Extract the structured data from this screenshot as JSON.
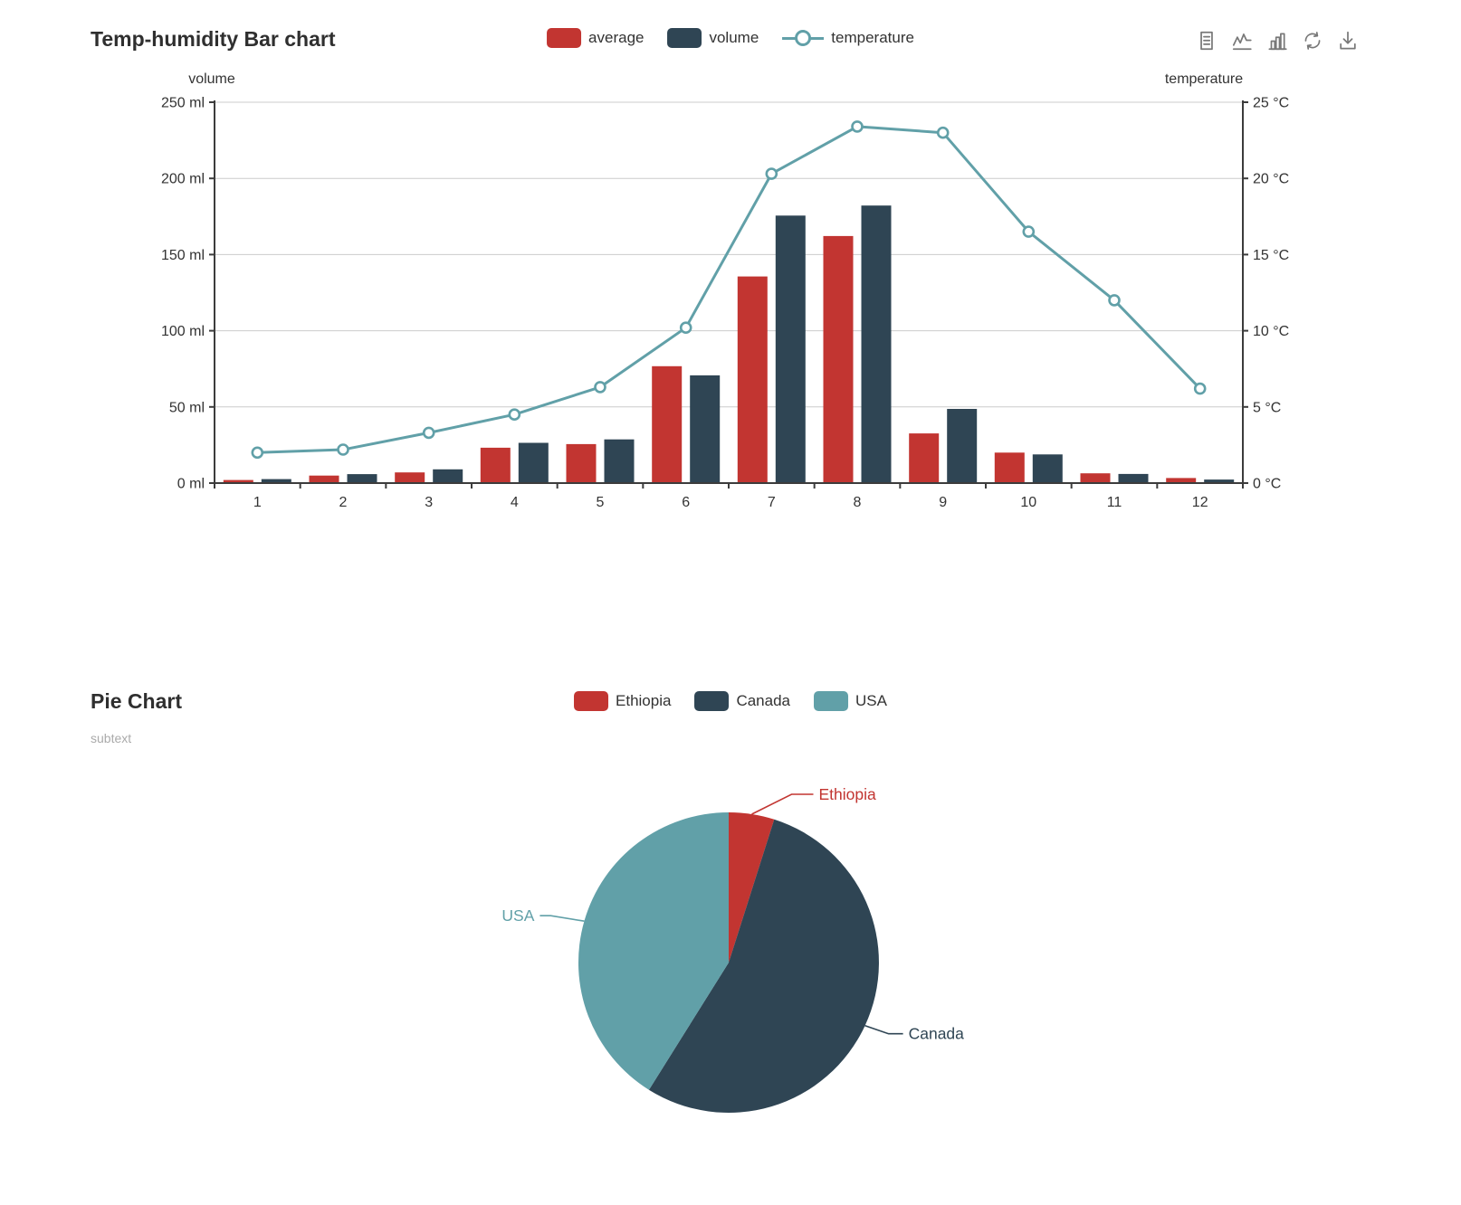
{
  "bar_chart": {
    "title": "Temp-humidity Bar chart",
    "legend": [
      {
        "label": "average",
        "color": "#c23531",
        "icon": "rect"
      },
      {
        "label": "volume",
        "color": "#2f4554",
        "icon": "rect"
      },
      {
        "label": "temperature",
        "color": "#61a0a8",
        "icon": "line-marker"
      }
    ],
    "toolbox": {
      "color": "#787878",
      "icons": [
        "data-view-icon",
        "magictype-line-icon",
        "magictype-bar-icon",
        "restore-icon",
        "save-image-icon"
      ]
    }
  },
  "pie_chart": {
    "title": "Pie Chart",
    "subtext": "subtext",
    "legend": [
      {
        "label": "Ethiopia",
        "color": "#c23531",
        "icon": "rect"
      },
      {
        "label": "Canada",
        "color": "#2f4554",
        "icon": "rect"
      },
      {
        "label": "USA",
        "color": "#61a0a8",
        "icon": "rect"
      }
    ]
  },
  "chart_data": [
    {
      "type": "bar",
      "title": "Temp-humidity Bar chart",
      "categories": [
        "1",
        "2",
        "3",
        "4",
        "5",
        "6",
        "7",
        "8",
        "9",
        "10",
        "11",
        "12"
      ],
      "series": [
        {
          "name": "average",
          "type": "bar",
          "axis": "left",
          "color": "#c23531",
          "values": [
            2.0,
            4.9,
            7.0,
            23.2,
            25.6,
            76.7,
            135.6,
            162.2,
            32.6,
            20.0,
            6.4,
            3.3
          ]
        },
        {
          "name": "volume",
          "type": "bar",
          "axis": "left",
          "color": "#2f4554",
          "values": [
            2.6,
            5.9,
            9.0,
            26.4,
            28.7,
            70.7,
            175.6,
            182.2,
            48.7,
            18.8,
            6.0,
            2.3
          ]
        },
        {
          "name": "temperature",
          "type": "line",
          "axis": "right",
          "color": "#61a0a8",
          "values": [
            2.0,
            2.2,
            3.3,
            4.5,
            6.3,
            10.2,
            20.3,
            23.4,
            23.0,
            16.5,
            12.0,
            6.2
          ]
        }
      ],
      "y_axis_left": {
        "name": "volume",
        "min": 0,
        "max": 250,
        "step": 50,
        "suffix": " ml"
      },
      "y_axis_right": {
        "name": "temperature",
        "min": 0,
        "max": 25,
        "step": 5,
        "suffix": " °C"
      },
      "grid": true,
      "legend_position": "top-center",
      "legend": [
        "average",
        "volume",
        "temperature"
      ]
    },
    {
      "type": "pie",
      "title": "Pie Chart",
      "subtitle": "subtext",
      "labels": [
        "Ethiopia",
        "Canada",
        "USA"
      ],
      "values_percent": [
        4.9,
        54.0,
        41.1
      ],
      "colors": [
        "#c23531",
        "#2f4554",
        "#61a0a8"
      ],
      "start_angle_deg": 0,
      "direction": "clockwise",
      "legend_position": "top-center"
    }
  ]
}
